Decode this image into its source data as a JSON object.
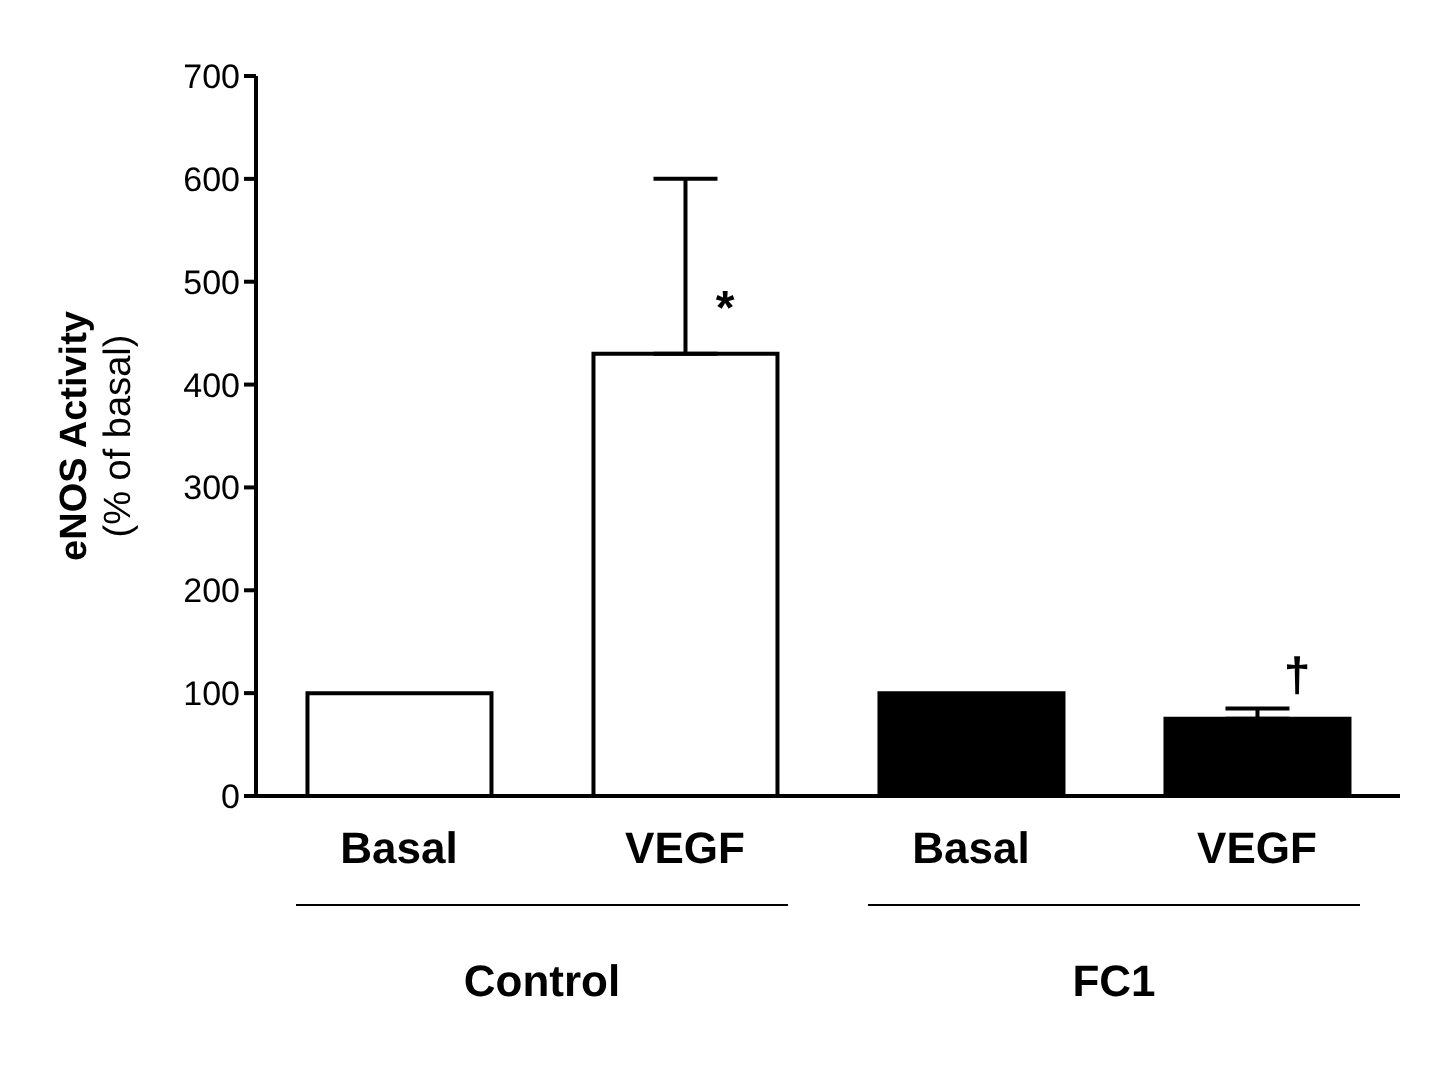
{
  "chart_data": {
    "type": "bar",
    "ylabel": "eNOS Activity\n(% of basal)",
    "categories": [
      "Basal",
      "VEGF",
      "Basal",
      "VEGF"
    ],
    "values": [
      100,
      430,
      100,
      75
    ],
    "colors": [
      "#ffffff",
      "#ffffff",
      "#000000",
      "#000000"
    ],
    "errors": [
      null,
      [
        430,
        600
      ],
      null,
      [
        75,
        85
      ]
    ],
    "ylim": [
      0,
      700
    ],
    "yticks": [
      0,
      100,
      200,
      300,
      400,
      500,
      600,
      700
    ],
    "grid": false,
    "legend": false,
    "annotations": [
      {
        "text": "*",
        "x": "VEGF",
        "y": 430
      },
      "†",
      "Control",
      "FC1"
    ]
  }
}
